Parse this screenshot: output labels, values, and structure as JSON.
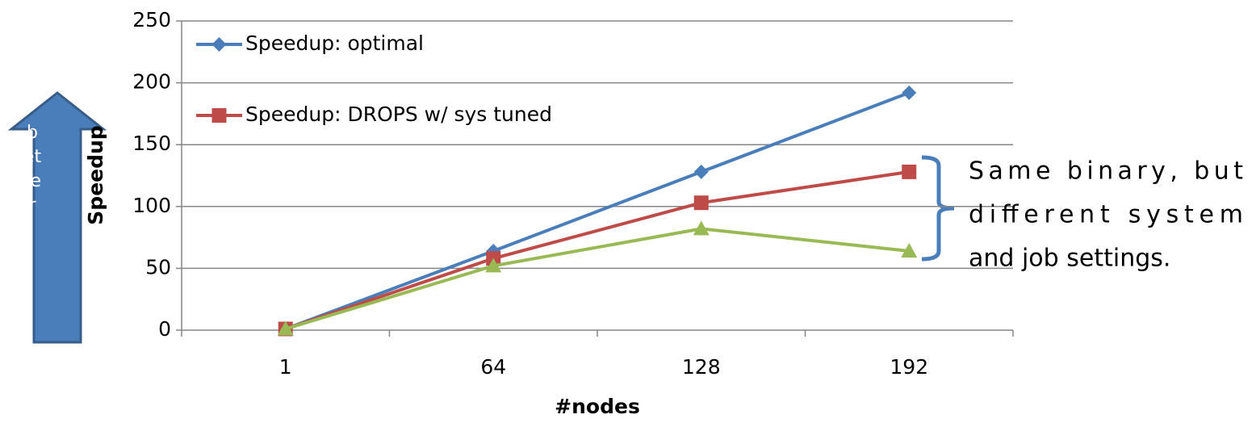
{
  "chart_data": {
    "type": "line",
    "x_label": "#nodes",
    "y_label": "Speedup",
    "categories": [
      "1",
      "64",
      "128",
      "192"
    ],
    "series": [
      {
        "name": "Speedup: optimal",
        "color": "#4a7ebb",
        "marker": "diamond",
        "values": [
          1,
          64,
          128,
          192
        ]
      },
      {
        "name": "Speedup: DROPS w/ sys tuned",
        "color": "#be4b48",
        "marker": "square",
        "values": [
          1,
          58,
          103,
          128
        ]
      },
      {
        "color": "#98b954",
        "marker": "triangle",
        "values": [
          1,
          52,
          82,
          64
        ]
      }
    ],
    "ylim": [
      0,
      250
    ],
    "yticks": [
      0,
      50,
      100,
      150,
      200,
      250
    ],
    "grid": true,
    "annotation": [
      "Same binary, but",
      "different system",
      "and job settings."
    ],
    "arrow_label": "better"
  }
}
